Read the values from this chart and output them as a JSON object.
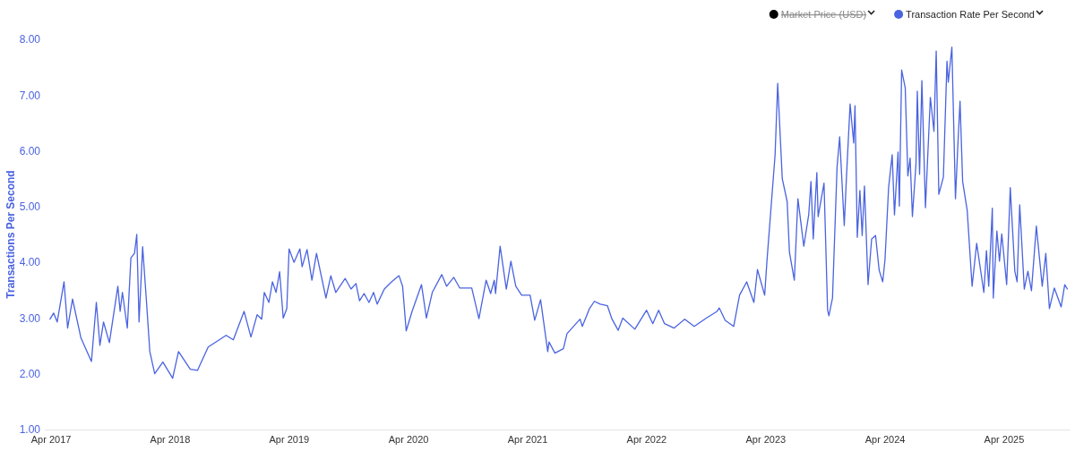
{
  "chart_data": {
    "type": "line",
    "ylabel": "Transactions Per Second",
    "legend": "top right",
    "grid": false,
    "marker": "none",
    "line_style": "solid",
    "xlim": [
      "2017-03-14",
      "2025-10-20"
    ],
    "xticks": [
      {
        "value": "2017-04",
        "label": "Apr 2017"
      },
      {
        "value": "2018-04",
        "label": "Apr 2018"
      },
      {
        "value": "2019-04",
        "label": "Apr 2019"
      },
      {
        "value": "2020-04",
        "label": "Apr 2020"
      },
      {
        "value": "2021-04",
        "label": "Apr 2021"
      },
      {
        "value": "2022-04",
        "label": "Apr 2022"
      },
      {
        "value": "2023-04",
        "label": "Apr 2023"
      },
      {
        "value": "2024-04",
        "label": "Apr 2024"
      },
      {
        "value": "2025-04",
        "label": "Apr 2025"
      }
    ],
    "ylim": [
      1,
      8
    ],
    "yticks": [
      {
        "value": 1,
        "label": "1.00"
      },
      {
        "value": 2,
        "label": "2.00"
      },
      {
        "value": 3,
        "label": "3.00"
      },
      {
        "value": 4,
        "label": "4.00"
      },
      {
        "value": 5,
        "label": "5.00"
      },
      {
        "value": 6,
        "label": "6.00"
      },
      {
        "value": 7,
        "label": "7.00"
      },
      {
        "value": 8,
        "label": "8.00"
      }
    ],
    "series": [
      {
        "name": "Market Price (USD)",
        "color": "#000000"
      },
      {
        "name": "Transaction Rate Per Second",
        "color": "#4a63e0",
        "x": [
          "2017-03-30",
          "2017-04-10",
          "2017-04-21",
          "2017-05-12",
          "2017-05-23",
          "2017-06-07",
          "2017-07-03",
          "2017-08-04",
          "2017-08-19",
          "2017-08-30",
          "2017-09-10",
          "2017-09-28",
          "2017-10-24",
          "2017-10-31",
          "2017-11-07",
          "2017-11-22",
          "2017-12-03",
          "2017-12-14",
          "2017-12-21",
          "2017-12-28",
          "2018-01-08",
          "2018-01-19",
          "2018-01-30",
          "2018-02-14",
          "2018-03-11",
          "2018-04-10",
          "2018-04-28",
          "2018-06-03",
          "2018-06-25",
          "2018-07-28",
          "2018-09-21",
          "2018-10-13",
          "2018-11-15",
          "2018-12-06",
          "2018-12-25",
          "2019-01-08",
          "2019-01-16",
          "2019-01-30",
          "2019-02-10",
          "2019-02-21",
          "2019-03-04",
          "2019-03-15",
          "2019-03-26",
          "2019-04-02",
          "2019-04-17",
          "2019-05-05",
          "2019-05-12",
          "2019-05-27",
          "2019-06-11",
          "2019-06-25",
          "2019-07-24",
          "2019-08-08",
          "2019-08-23",
          "2019-09-21",
          "2019-10-09",
          "2019-10-24",
          "2019-11-04",
          "2019-11-18",
          "2019-12-03",
          "2019-12-17",
          "2019-12-28",
          "2020-01-19",
          "2020-02-10",
          "2020-03-04",
          "2020-03-15",
          "2020-03-26",
          "2020-04-13",
          "2020-05-12",
          "2020-05-27",
          "2020-06-14",
          "2020-07-13",
          "2020-07-28",
          "2020-08-19",
          "2020-09-06",
          "2020-10-13",
          "2020-11-04",
          "2020-11-26",
          "2020-12-10",
          "2020-12-21",
          "2020-12-25",
          "2021-01-08",
          "2021-01-27",
          "2021-02-10",
          "2021-02-25",
          "2021-03-15",
          "2021-04-10",
          "2021-04-24",
          "2021-05-12",
          "2021-06-03",
          "2021-06-07",
          "2021-06-25",
          "2021-07-21",
          "2021-08-01",
          "2021-09-10",
          "2021-09-17",
          "2021-10-09",
          "2021-10-24",
          "2021-11-11",
          "2021-12-03",
          "2021-12-17",
          "2022-01-05",
          "2022-01-19",
          "2022-02-25",
          "2022-04-02",
          "2022-04-21",
          "2022-05-09",
          "2022-05-27",
          "2022-06-25",
          "2022-07-28",
          "2022-08-26",
          "2022-10-02",
          "2022-11-04",
          "2022-11-11",
          "2022-11-29",
          "2022-12-25",
          "2023-01-12",
          "2023-02-03",
          "2023-02-25",
          "2023-03-08",
          "2023-03-30",
          "2023-04-06",
          "2023-05-01",
          "2023-05-09",
          "2023-05-23",
          "2023-06-07",
          "2023-06-14",
          "2023-06-29",
          "2023-07-10",
          "2023-07-28",
          "2023-08-12",
          "2023-08-19",
          "2023-08-26",
          "2023-09-06",
          "2023-09-10",
          "2023-09-28",
          "2023-10-09",
          "2023-10-13",
          "2023-10-24",
          "2023-11-07",
          "2023-11-15",
          "2023-11-29",
          "2023-12-06",
          "2023-12-17",
          "2023-12-28",
          "2024-01-01",
          "2024-01-08",
          "2024-01-16",
          "2024-01-23",
          "2024-01-30",
          "2024-02-10",
          "2024-02-21",
          "2024-03-04",
          "2024-03-15",
          "2024-03-26",
          "2024-04-02",
          "2024-04-13",
          "2024-04-24",
          "2024-05-01",
          "2024-05-12",
          "2024-05-16",
          "2024-05-23",
          "2024-06-03",
          "2024-06-11",
          "2024-06-18",
          "2024-06-25",
          "2024-07-06",
          "2024-07-10",
          "2024-07-17",
          "2024-07-24",
          "2024-08-04",
          "2024-08-19",
          "2024-08-30",
          "2024-09-06",
          "2024-09-14",
          "2024-09-28",
          "2024-10-09",
          "2024-10-13",
          "2024-10-24",
          "2024-11-04",
          "2024-11-11",
          "2024-11-18",
          "2024-11-26",
          "2024-12-10",
          "2024-12-25",
          "2025-01-08",
          "2025-01-30",
          "2025-02-07",
          "2025-02-14",
          "2025-02-25",
          "2025-02-28",
          "2025-03-11",
          "2025-03-19",
          "2025-03-26",
          "2025-04-10",
          "2025-04-21",
          "2025-05-05",
          "2025-05-12",
          "2025-05-20",
          "2025-06-03",
          "2025-06-14",
          "2025-06-25",
          "2025-07-10",
          "2025-07-28",
          "2025-08-08",
          "2025-08-19",
          "2025-09-03",
          "2025-09-24",
          "2025-10-05",
          "2025-10-13"
        ],
        "values": [
          2.98,
          3.09,
          2.93,
          3.65,
          2.82,
          3.34,
          2.64,
          2.22,
          3.28,
          2.51,
          2.93,
          2.56,
          3.57,
          3.12,
          3.46,
          2.82,
          4.08,
          4.16,
          4.5,
          2.93,
          4.28,
          3.36,
          2.4,
          2.0,
          2.21,
          1.92,
          2.4,
          2.08,
          2.06,
          2.48,
          2.69,
          2.61,
          3.12,
          2.66,
          3.06,
          2.98,
          3.46,
          3.28,
          3.65,
          3.46,
          3.83,
          3.0,
          3.17,
          4.24,
          4.0,
          4.24,
          3.92,
          4.23,
          3.68,
          4.16,
          3.36,
          3.76,
          3.46,
          3.71,
          3.52,
          3.62,
          3.31,
          3.44,
          3.28,
          3.46,
          3.25,
          3.52,
          3.65,
          3.76,
          3.57,
          2.77,
          3.12,
          3.6,
          3.0,
          3.46,
          3.78,
          3.57,
          3.73,
          3.54,
          3.54,
          2.99,
          3.68,
          3.44,
          3.68,
          3.44,
          4.29,
          3.52,
          4.02,
          3.57,
          3.41,
          3.41,
          2.96,
          3.33,
          2.4,
          2.57,
          2.37,
          2.45,
          2.72,
          2.98,
          2.85,
          3.17,
          3.3,
          3.25,
          3.22,
          2.98,
          2.78,
          3.0,
          2.8,
          3.14,
          2.9,
          3.14,
          2.9,
          2.82,
          2.98,
          2.85,
          3.0,
          3.12,
          3.18,
          2.96,
          2.85,
          3.41,
          3.65,
          3.28,
          3.87,
          3.41,
          4.02,
          5.93,
          7.21,
          5.5,
          5.09,
          4.18,
          3.68,
          5.14,
          4.29,
          4.85,
          5.45,
          4.42,
          5.61,
          4.82,
          5.42,
          3.14,
          3.04,
          3.36,
          5.71,
          6.25,
          4.66,
          5.55,
          6.84,
          6.14,
          6.81,
          4.45,
          5.29,
          4.48,
          5.37,
          3.6,
          4.42,
          4.48,
          3.86,
          3.65,
          4.05,
          5.34,
          5.93,
          4.85,
          5.98,
          5.01,
          7.45,
          7.13,
          5.55,
          5.87,
          4.82,
          5.77,
          7.07,
          5.58,
          7.26,
          4.98,
          6.96,
          6.35,
          7.79,
          5.22,
          5.53,
          7.61,
          7.23,
          7.86,
          5.14,
          6.06,
          6.89,
          5.45,
          4.93,
          3.57,
          4.34,
          3.46,
          4.21,
          3.57,
          4.97,
          3.36,
          4.56,
          4.02,
          4.51,
          3.6,
          5.34,
          3.84,
          3.65,
          5.03,
          3.52,
          3.84,
          3.49,
          4.65,
          3.57,
          4.16,
          3.17,
          3.54,
          3.2,
          3.6,
          3.52
        ]
      }
    ]
  }
}
